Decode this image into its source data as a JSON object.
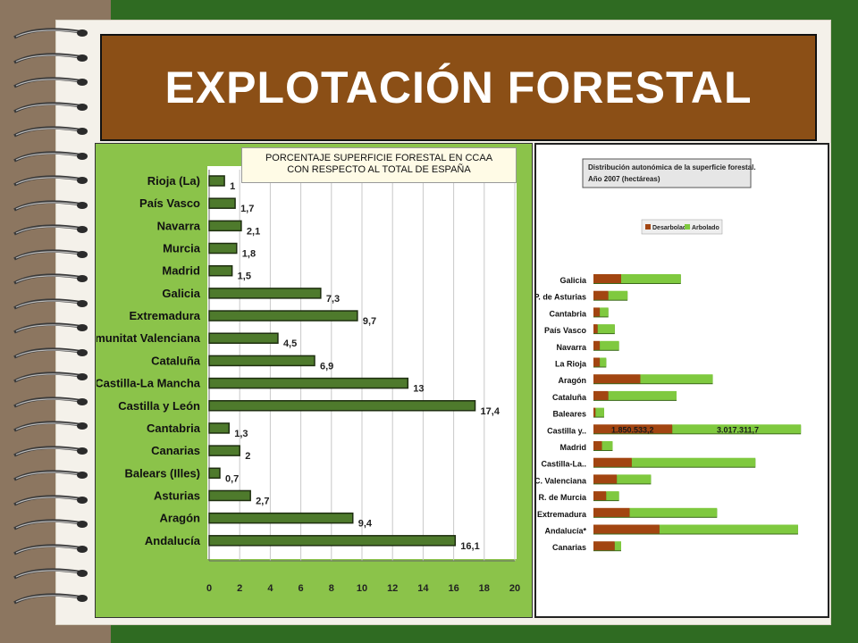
{
  "slide": {
    "title": "EXPLOTACIÓN FORESTAL"
  },
  "colors": {
    "title_bg": "#8b4f16",
    "panel_green": "#8bc34a",
    "bar_dark_green": "#4e7a2c",
    "bar_brown": "#a24511",
    "bar_light_green": "#7fc93f"
  },
  "chart_data": [
    {
      "type": "bar",
      "orientation": "horizontal",
      "title": "PORCENTAJE SUPERFICIE FORESTAL EN CCAA CON RESPECTO AL TOTAL DE ESPAÑA",
      "title_lines": [
        "PORCENTAJE SUPERFICIE FORESTAL EN CCAA",
        "CON RESPECTO AL TOTAL DE ESPAÑA"
      ],
      "categories": [
        "Rioja (La)",
        "País Vasco",
        "Navarra",
        "Murcia",
        "Madrid",
        "Galicia",
        "Extremadura",
        "Comunitat Valenciana",
        "Cataluña",
        "Castilla-La Mancha",
        "Castilla y León",
        "Cantabria",
        "Canarias",
        "Balears (Illes)",
        "Asturias",
        "Aragón",
        "Andalucía"
      ],
      "values": [
        1,
        1.7,
        2.1,
        1.8,
        1.5,
        7.3,
        9.7,
        4.5,
        6.9,
        13,
        17.4,
        1.3,
        2,
        0.7,
        2.7,
        9.4,
        16.1
      ],
      "value_labels": [
        "1",
        "1,7",
        "2,1",
        "1,8",
        "1,5",
        "7,3",
        "9,7",
        "4,5",
        "6,9",
        "13",
        "17,4",
        "1,3",
        "2",
        "0,7",
        "2,7",
        "9,4",
        "16,1"
      ],
      "xlim": [
        0,
        20
      ],
      "xticks": [
        "0",
        "2",
        "4",
        "6",
        "8",
        "10",
        "12",
        "14",
        "16",
        "18",
        "20"
      ],
      "grid": true
    },
    {
      "type": "bar",
      "orientation": "horizontal",
      "stacked": true,
      "title_lines": [
        "Distribución autonómica de la superficie forestal.",
        "Año 2007 (hectáreas)"
      ],
      "categories": [
        "Galicia",
        "P. de Asturias",
        "Cantabria",
        "País Vasco",
        "Navarra",
        "La Rioja",
        "Aragón",
        "Cataluña",
        "Baleares",
        "Castilla y..",
        "Madrid",
        "Castilla-La..",
        "C. Valenciana",
        "R. de Murcia",
        "Extremadura",
        "Andalucía*",
        "Canarias"
      ],
      "series": [
        {
          "name": "Desarbolado",
          "color": "#a24511",
          "values": [
            650000,
            350000,
            150000,
            100000,
            150000,
            150000,
            1100000,
            350000,
            50000,
            1850533.2,
            200000,
            900000,
            550000,
            300000,
            850000,
            1550000,
            500000
          ]
        },
        {
          "name": "Arbolado",
          "color": "#7fc93f",
          "values": [
            1400000,
            450000,
            200000,
            400000,
            450000,
            150000,
            1700000,
            1600000,
            200000,
            3017311.7,
            250000,
            2900000,
            800000,
            300000,
            2050000,
            3250000,
            150000
          ]
        }
      ],
      "data_labels": [
        "1.850.533,2",
        "3.017.311,7"
      ],
      "legend": "top"
    }
  ]
}
